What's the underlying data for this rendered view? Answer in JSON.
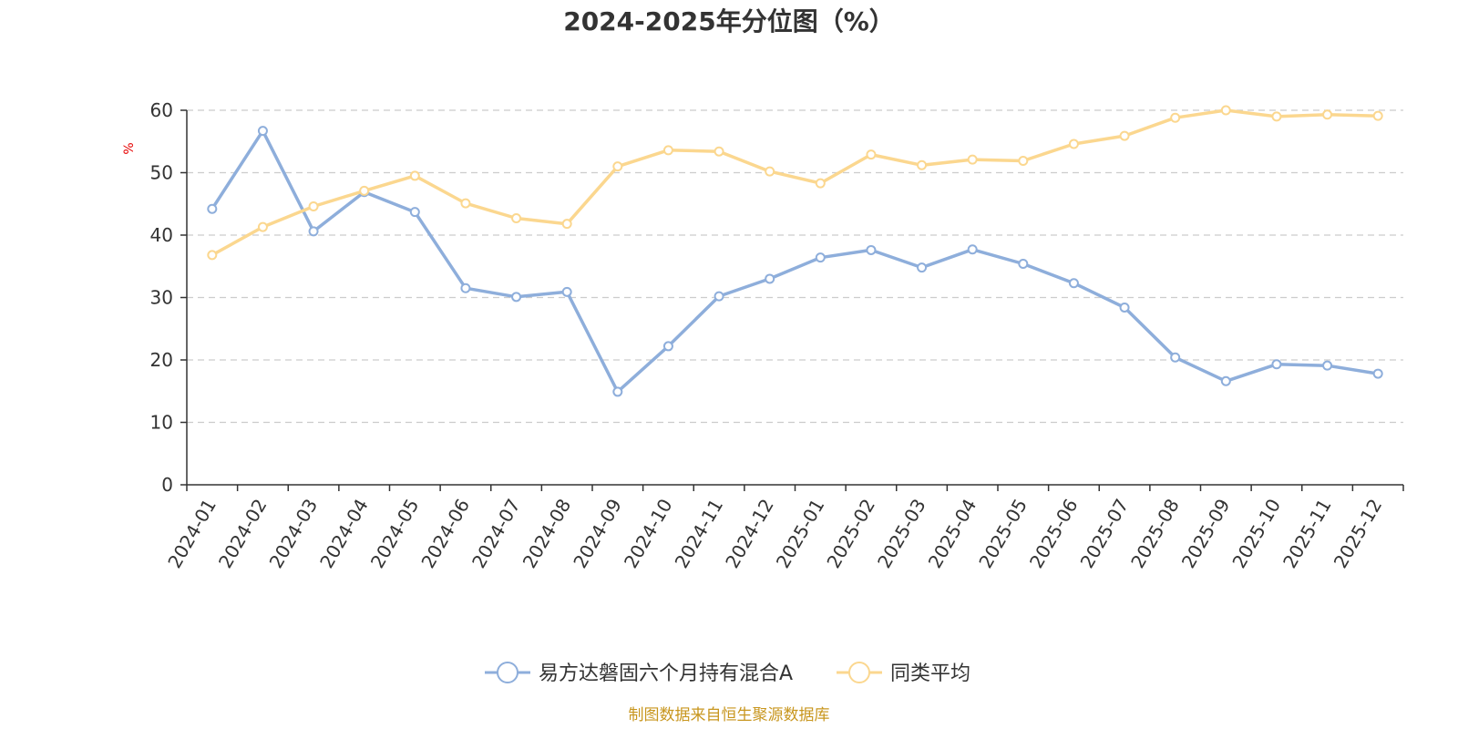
{
  "chart_data": {
    "type": "line",
    "title": "2024-2025年分位图（%）",
    "ylabel": "%",
    "xlabel": "",
    "ylim": [
      0,
      60
    ],
    "yticks": [
      0,
      10,
      20,
      30,
      40,
      50,
      60
    ],
    "grid": true,
    "legend_position": "bottom-center",
    "categories": [
      "2024-01",
      "2024-02",
      "2024-03",
      "2024-04",
      "2024-05",
      "2024-06",
      "2024-07",
      "2024-08",
      "2024-09",
      "2024-10",
      "2024-11",
      "2024-12",
      "2025-01",
      "2025-02",
      "2025-03",
      "2025-04",
      "2025-05",
      "2025-06",
      "2025-07",
      "2025-08",
      "2025-09",
      "2025-10",
      "2025-11",
      "2025-12"
    ],
    "series": [
      {
        "name": "易方达磐固六个月持有混合A",
        "color": "#8eaedb",
        "values": [
          44.2,
          56.7,
          40.6,
          46.9,
          43.7,
          31.5,
          30.1,
          30.9,
          14.9,
          22.2,
          30.2,
          33.0,
          36.4,
          37.6,
          34.8,
          37.7,
          35.4,
          32.3,
          28.4,
          20.4,
          16.6,
          19.3,
          19.1,
          17.8
        ]
      },
      {
        "name": "同类平均",
        "color": "#fbd78f",
        "values": [
          36.8,
          41.3,
          44.6,
          47.1,
          49.5,
          45.1,
          42.7,
          41.8,
          51.0,
          53.6,
          53.4,
          50.2,
          48.3,
          52.9,
          51.2,
          52.1,
          51.9,
          54.6,
          55.9,
          58.8,
          60.0,
          59.0,
          59.3,
          59.1
        ]
      }
    ],
    "source": "制图数据来自恒生聚源数据库"
  },
  "colors": {
    "title": "#333333",
    "axis": "#333333",
    "grid": "#cccccc",
    "unit_label": "#e60000",
    "source_text": "#c8961e"
  }
}
